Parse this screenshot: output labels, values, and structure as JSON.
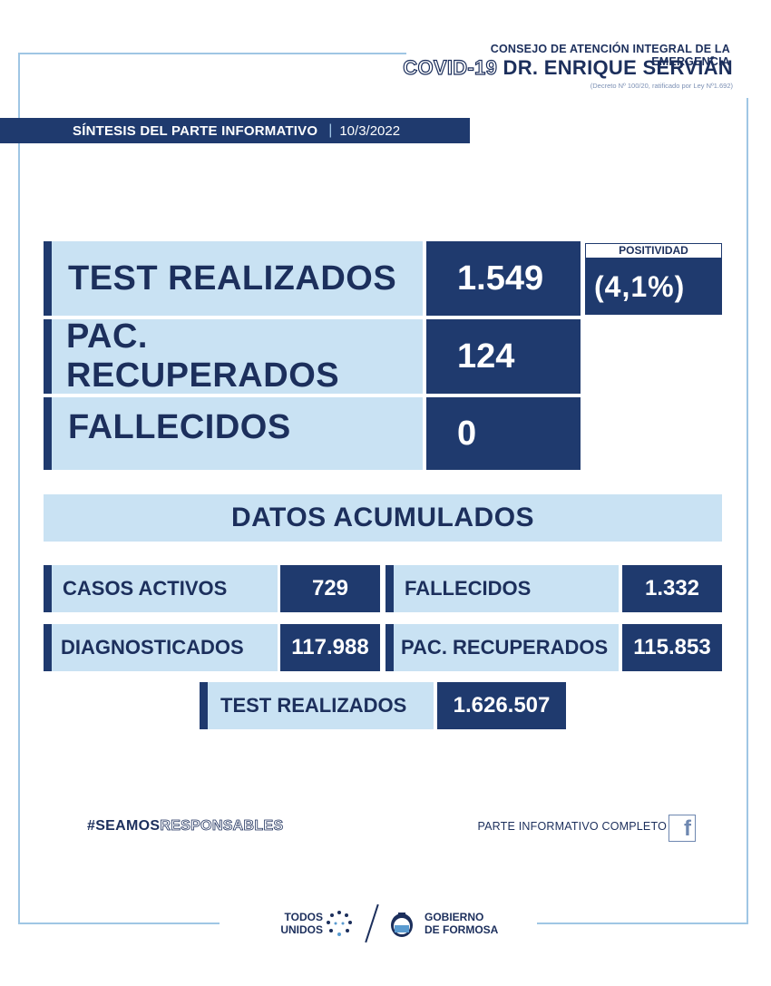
{
  "header": {
    "org_line1": "CONSEJO DE ATENCIÓN INTEGRAL DE LA EMERGENCIA",
    "covid": "COVID-19",
    "org_name": "DR. ENRIQUE SERVIÁN",
    "decree": "(Decreto Nº 100/20, ratificado por Ley Nº1.692)"
  },
  "synthesis": {
    "title": "SÍNTESIS DEL PARTE INFORMATIVO",
    "separator": "|",
    "date": "10/3/2022"
  },
  "daily": {
    "tests_label": "TEST REALIZADOS",
    "tests_value": "1.549",
    "positivity_label": "POSITIVIDAD",
    "positivity_value": "(4,1%)",
    "recovered_label": "PAC. RECUPERADOS",
    "recovered_value": "124",
    "deaths_label": "FALLECIDOS",
    "deaths_value": "0"
  },
  "accumulated": {
    "title": "DATOS ACUMULADOS",
    "active_label": "CASOS ACTIVOS",
    "active_value": "729",
    "deaths_label": "FALLECIDOS",
    "deaths_value": "1.332",
    "diagnosed_label": "DIAGNOSTICADOS",
    "diagnosed_value": "117.988",
    "recovered_label": "PAC. RECUPERADOS",
    "recovered_value": "115.853",
    "tests_label": "TEST REALIZADOS",
    "tests_value": "1.626.507"
  },
  "footer": {
    "hashtag_bold": "#SEAMOS",
    "hashtag_outline": "RESPONSABLES",
    "full_report": "PARTE INFORMATIVO COMPLETO",
    "facebook_icon": "f",
    "todos_line1": "TODOS",
    "todos_line2": "UNIDOS",
    "gob_line1": "GOBIERNO",
    "gob_line2": "DE FORMOSA"
  },
  "colors": {
    "navy": "#1f3a6e",
    "light_blue": "#c9e2f3",
    "frame": "#9fc6e4"
  }
}
